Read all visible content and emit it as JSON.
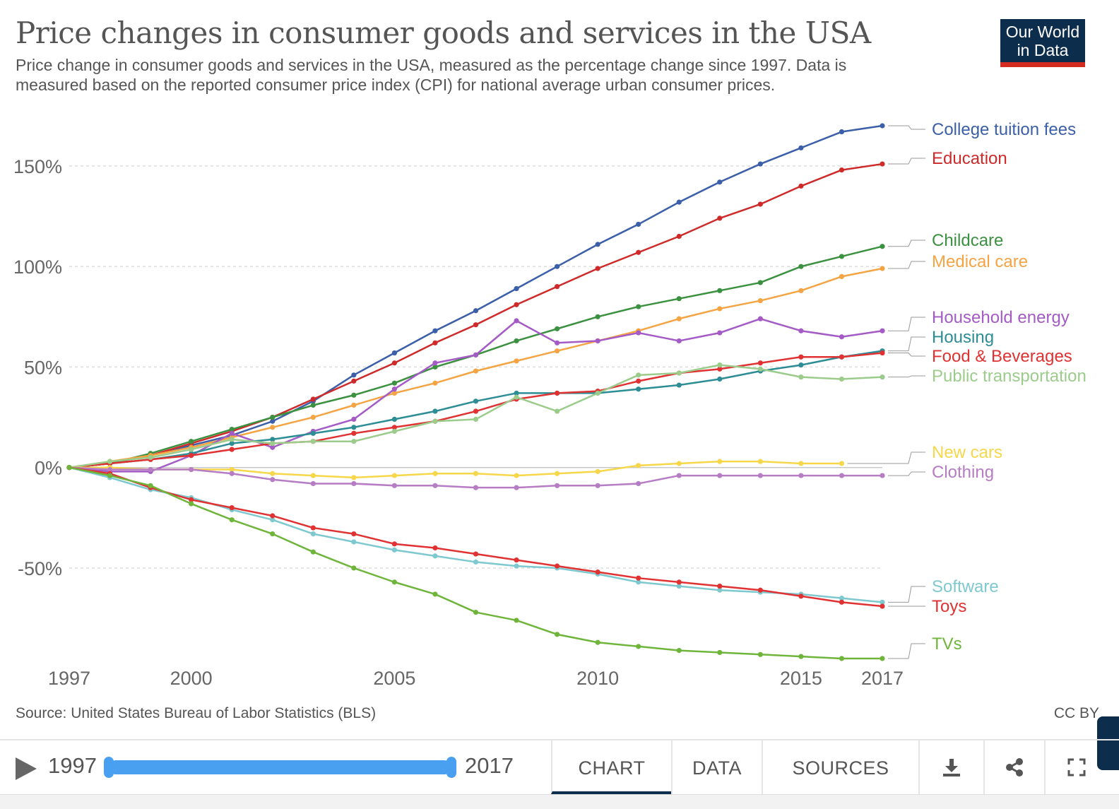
{
  "header": {
    "title": "Price changes in consumer goods and services in the USA",
    "subtitle": "Price change in consumer goods and services in the USA, measured as the percentage change since 1997. Data is measured based on the reported consumer price index (CPI) for national average urban consumer prices.",
    "logo_line1": "Our World",
    "logo_line2": "in Data"
  },
  "source": "Source: United States Bureau of Labor Statistics (BLS)",
  "license": "CC BY",
  "controls": {
    "start_year": "1997",
    "end_year": "2017",
    "tabs": {
      "chart": "CHART",
      "data": "DATA",
      "sources": "SOURCES"
    }
  },
  "colors": {
    "grid": "#dddddd",
    "axis_text": "#666666",
    "brand": "#0d2d4d",
    "accent": "#d42b21",
    "slider": "#4aa0f0"
  },
  "chart_data": {
    "type": "line",
    "title": "Price changes in consumer goods and services in the USA",
    "xlabel": "",
    "ylabel": "",
    "xlim": [
      1997,
      2017
    ],
    "ylim": [
      -95,
      170
    ],
    "x_ticks": [
      1997,
      2000,
      2005,
      2010,
      2015,
      2017
    ],
    "y_ticks": [
      {
        "value": -50,
        "label": "-50%"
      },
      {
        "value": 0,
        "label": "0%"
      },
      {
        "value": 50,
        "label": "50%"
      },
      {
        "value": 100,
        "label": "100%"
      },
      {
        "value": 150,
        "label": "150%"
      }
    ],
    "x": [
      1997,
      1998,
      1999,
      2000,
      2001,
      2002,
      2003,
      2004,
      2005,
      2006,
      2007,
      2008,
      2009,
      2010,
      2011,
      2012,
      2013,
      2014,
      2015,
      2016,
      2017
    ],
    "series": [
      {
        "name": "College tuition fees",
        "color": "#3b5fa8",
        "values": [
          0,
          2,
          6,
          11,
          16,
          23,
          33,
          46,
          57,
          68,
          78,
          89,
          100,
          111,
          121,
          132,
          142,
          151,
          159,
          167,
          170
        ]
      },
      {
        "name": "Education",
        "color": "#cf2a2a",
        "values": [
          0,
          2,
          6,
          12,
          18,
          25,
          34,
          43,
          52,
          62,
          71,
          81,
          90,
          99,
          107,
          115,
          124,
          131,
          140,
          148,
          151
        ]
      },
      {
        "name": "Childcare",
        "color": "#3c9140",
        "values": [
          0,
          2,
          7,
          13,
          19,
          25,
          31,
          36,
          42,
          50,
          56,
          63,
          69,
          75,
          80,
          84,
          88,
          92,
          100,
          105,
          110
        ]
      },
      {
        "name": "Medical care",
        "color": "#f5a443",
        "values": [
          0,
          3,
          6,
          10,
          15,
          20,
          25,
          31,
          37,
          42,
          48,
          53,
          58,
          63,
          68,
          74,
          79,
          83,
          88,
          95,
          99
        ]
      },
      {
        "name": "Household energy",
        "color": "#a45bc6",
        "values": [
          0,
          -2,
          -2,
          6,
          17,
          10,
          18,
          24,
          39,
          52,
          56,
          73,
          62,
          63,
          67,
          63,
          67,
          74,
          68,
          65,
          68
        ]
      },
      {
        "name": "Housing",
        "color": "#2d8d94",
        "values": [
          0,
          2,
          4,
          7,
          12,
          14,
          17,
          20,
          24,
          28,
          33,
          37,
          37,
          37,
          39,
          41,
          44,
          48,
          51,
          55,
          58
        ]
      },
      {
        "name": "Food & Beverages",
        "color": "#e03232",
        "values": [
          0,
          2,
          4,
          6,
          9,
          12,
          13,
          17,
          20,
          23,
          28,
          34,
          37,
          38,
          43,
          47,
          49,
          52,
          55,
          55,
          57
        ]
      },
      {
        "name": "Public transportation",
        "color": "#9ccc8c",
        "values": [
          0,
          3,
          5,
          9,
          14,
          12,
          13,
          13,
          18,
          23,
          24,
          35,
          28,
          37,
          46,
          47,
          51,
          49,
          45,
          44,
          45
        ]
      },
      {
        "name": "New cars",
        "color": "#f7d74a",
        "values": [
          0,
          0,
          -1,
          -1,
          -1,
          -3,
          -4,
          -5,
          -4,
          -3,
          -3,
          -4,
          -3,
          -2,
          1,
          2,
          3,
          3,
          2,
          2,
          null
        ]
      },
      {
        "name": "Clothing",
        "color": "#b67cc4",
        "values": [
          0,
          -1,
          -1,
          -1,
          -3,
          -6,
          -8,
          -8,
          -9,
          -9,
          -10,
          -10,
          -9,
          -9,
          -8,
          -4,
          -4,
          -4,
          -4,
          -4,
          -4
        ]
      },
      {
        "name": "Software",
        "color": "#7ec9d0",
        "values": [
          0,
          -5,
          -11,
          -15,
          -21,
          -26,
          -33,
          -37,
          -41,
          -44,
          -47,
          -49,
          -50,
          -53,
          -57,
          -59,
          -61,
          -62,
          -63,
          -65,
          -67
        ]
      },
      {
        "name": "Toys",
        "color": "#e03232",
        "values": [
          0,
          -3,
          -10,
          -16,
          -20,
          -24,
          -30,
          -33,
          -38,
          -40,
          -43,
          -46,
          -49,
          -52,
          -55,
          -57,
          -59,
          -61,
          -64,
          -67,
          -69
        ]
      },
      {
        "name": "TVs",
        "color": "#6fb53c",
        "values": [
          0,
          -4,
          -9,
          -18,
          -26,
          -33,
          -42,
          -50,
          -57,
          -63,
          -72,
          -76,
          -83,
          -87,
          -89,
          -91,
          -92,
          -93,
          -94,
          -95,
          -95
        ]
      }
    ]
  }
}
